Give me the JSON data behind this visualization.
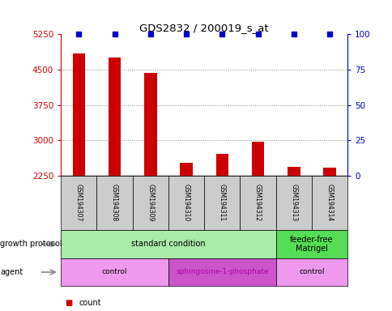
{
  "title": "GDS2832 / 200019_s_at",
  "samples": [
    "GSM194307",
    "GSM194308",
    "GSM194309",
    "GSM194310",
    "GSM194311",
    "GSM194312",
    "GSM194313",
    "GSM194314"
  ],
  "counts": [
    4850,
    4750,
    4430,
    2530,
    2720,
    2970,
    2430,
    2420
  ],
  "percentile_ranks": [
    100,
    100,
    100,
    100,
    100,
    100,
    100,
    100
  ],
  "ylim_left": [
    2250,
    5250
  ],
  "ylim_right": [
    0,
    100
  ],
  "yticks_left": [
    2250,
    3000,
    3750,
    4500,
    5250
  ],
  "yticks_right": [
    0,
    25,
    50,
    75,
    100
  ],
  "bar_color": "#cc0000",
  "marker_color": "#0000cc",
  "growth_protocol_groups": [
    {
      "label": "standard condition",
      "start": 0,
      "end": 6,
      "color": "#aaeaaa"
    },
    {
      "label": "feeder-free\nMatrigel",
      "start": 6,
      "end": 8,
      "color": "#55dd55"
    }
  ],
  "agent_groups": [
    {
      "label": "control",
      "start": 0,
      "end": 3,
      "color": "#ee99ee"
    },
    {
      "label": "sphingosine-1-phosphate",
      "start": 3,
      "end": 6,
      "color": "#cc55cc"
    },
    {
      "label": "control",
      "start": 6,
      "end": 8,
      "color": "#ee99ee"
    }
  ],
  "bar_width": 0.35,
  "grid_color": "#888888",
  "left_axis_color": "#cc0000",
  "right_axis_color": "#0000cc",
  "sample_row_color": "#cccccc",
  "sphingo_text_color": "#aa00aa"
}
